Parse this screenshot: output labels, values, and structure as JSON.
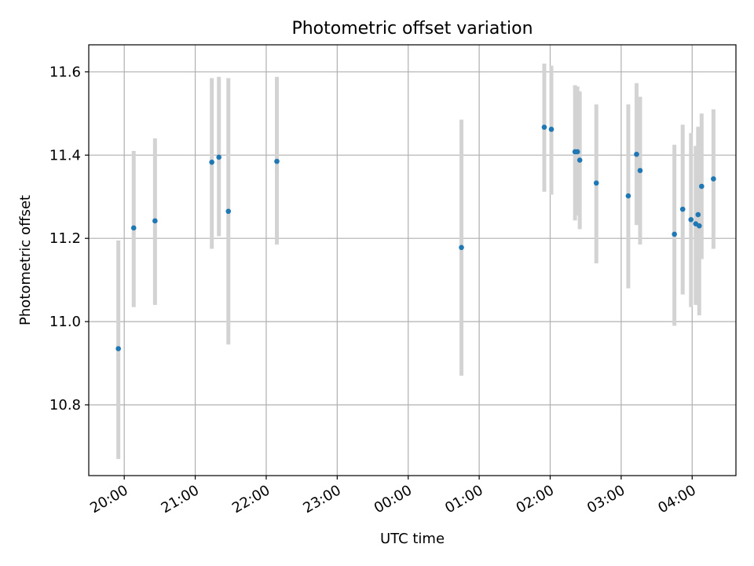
{
  "chart_data": {
    "type": "scatter",
    "title": "Photometric offset variation",
    "xlabel": "UTC time",
    "ylabel": "Photometric offset",
    "x_tick_labels": [
      "20:00",
      "21:00",
      "22:00",
      "23:00",
      "00:00",
      "01:00",
      "02:00",
      "03:00",
      "04:00"
    ],
    "x_tick_values": [
      0,
      60,
      120,
      180,
      240,
      300,
      360,
      420,
      480
    ],
    "x_axis_start": "20:00 UTC",
    "xlim": [
      -30,
      517
    ],
    "ylim": [
      10.63,
      11.665
    ],
    "y_ticks": [
      10.8,
      11.0,
      11.2,
      11.4,
      11.6
    ],
    "grid": true,
    "colors": {
      "points": "#1f77b4",
      "errorbars": "#d3d3d3"
    },
    "points": [
      {
        "t": -5,
        "y": 10.935,
        "lo": 10.67,
        "hi": 11.195
      },
      {
        "t": 8,
        "y": 11.225,
        "lo": 11.035,
        "hi": 11.41
      },
      {
        "t": 26,
        "y": 11.242,
        "lo": 11.04,
        "hi": 11.44
      },
      {
        "t": 74,
        "y": 11.383,
        "lo": 11.175,
        "hi": 11.585
      },
      {
        "t": 80,
        "y": 11.395,
        "lo": 11.205,
        "hi": 11.588
      },
      {
        "t": 88,
        "y": 11.265,
        "lo": 10.945,
        "hi": 11.585
      },
      {
        "t": 129,
        "y": 11.385,
        "lo": 11.185,
        "hi": 11.588
      },
      {
        "t": 285,
        "y": 11.178,
        "lo": 10.87,
        "hi": 11.485
      },
      {
        "t": 355,
        "y": 11.467,
        "lo": 11.312,
        "hi": 11.62
      },
      {
        "t": 361,
        "y": 11.462,
        "lo": 11.305,
        "hi": 11.615
      },
      {
        "t": 381,
        "y": 11.408,
        "lo": 11.243,
        "hi": 11.568
      },
      {
        "t": 383,
        "y": 11.408,
        "lo": 11.255,
        "hi": 11.565
      },
      {
        "t": 385,
        "y": 11.388,
        "lo": 11.222,
        "hi": 11.553
      },
      {
        "t": 399,
        "y": 11.333,
        "lo": 11.14,
        "hi": 11.522
      },
      {
        "t": 426,
        "y": 11.302,
        "lo": 11.08,
        "hi": 11.522
      },
      {
        "t": 433,
        "y": 11.402,
        "lo": 11.232,
        "hi": 11.573
      },
      {
        "t": 436,
        "y": 11.363,
        "lo": 11.185,
        "hi": 11.54
      },
      {
        "t": 465,
        "y": 11.21,
        "lo": 10.99,
        "hi": 11.425
      },
      {
        "t": 472,
        "y": 11.27,
        "lo": 11.065,
        "hi": 11.473
      },
      {
        "t": 479,
        "y": 11.245,
        "lo": 11.035,
        "hi": 11.453
      },
      {
        "t": 483,
        "y": 11.235,
        "lo": 11.04,
        "hi": 11.422
      },
      {
        "t": 485,
        "y": 11.257,
        "lo": 11.04,
        "hi": 11.468
      },
      {
        "t": 486,
        "y": 11.23,
        "lo": 11.015,
        "hi": 11.45
      },
      {
        "t": 488,
        "y": 11.325,
        "lo": 11.15,
        "hi": 11.5
      },
      {
        "t": 498,
        "y": 11.343,
        "lo": 11.175,
        "hi": 11.51
      }
    ]
  }
}
